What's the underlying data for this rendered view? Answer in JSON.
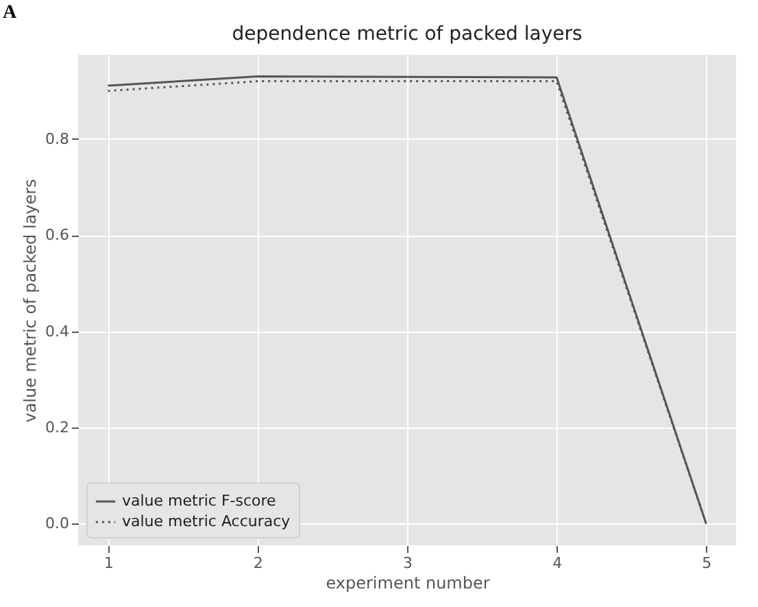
{
  "chart_data": {
    "type": "line",
    "title": "dependence metric of packed layers",
    "xlabel": "experiment number",
    "ylabel": "value metric of packed layers",
    "annotations": [
      "A"
    ],
    "x": [
      1,
      2,
      3,
      4,
      5
    ],
    "series": [
      {
        "name": "value metric F-score",
        "color": "#555555",
        "line_style": "solid",
        "values": [
          0.911,
          0.93,
          0.929,
          0.928,
          0.0
        ]
      },
      {
        "name": "value metric Accuracy",
        "color": "#555555",
        "line_style": "dotted",
        "values": [
          0.9,
          0.92,
          0.92,
          0.92,
          0.0
        ]
      }
    ],
    "xlim": [
      0.8,
      5.2
    ],
    "xticks": [
      1,
      2,
      3,
      4,
      5
    ],
    "ylim": [
      -0.045,
      0.975
    ],
    "yticks": [
      {
        "value": 0,
        "label": "0.0"
      },
      0.2,
      0.4,
      0.6,
      0.8
    ],
    "grid": true,
    "legend": "bottom left"
  }
}
